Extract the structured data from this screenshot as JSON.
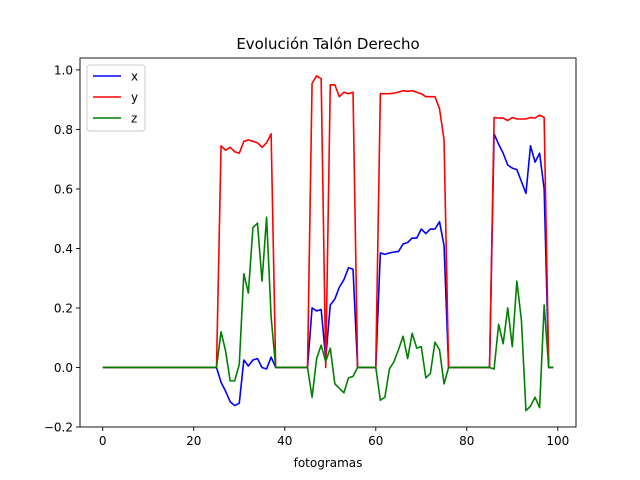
{
  "chart_data": {
    "type": "line",
    "title": "Evolución Talón Derecho",
    "xlabel": "fotogramas",
    "ylabel": "",
    "xlim": [
      -5,
      104
    ],
    "ylim": [
      -0.2,
      1.04
    ],
    "xticks": [
      0,
      20,
      40,
      60,
      80,
      100
    ],
    "yticks": [
      -0.2,
      0.0,
      0.2,
      0.4,
      0.6,
      0.8,
      1.0
    ],
    "xtick_labels": [
      "0",
      "20",
      "40",
      "60",
      "80",
      "100"
    ],
    "ytick_labels": [
      "−0.2",
      "0.0",
      "0.2",
      "0.4",
      "0.6",
      "0.8",
      "1.0"
    ],
    "grid": false,
    "legend_position": "upper-left",
    "series": [
      {
        "name": "x",
        "color": "#0000ff",
        "x": [
          0,
          25,
          26,
          27,
          28,
          29,
          30,
          31,
          32,
          33,
          34,
          35,
          36,
          37,
          38,
          45,
          46,
          47,
          48,
          49,
          50,
          51,
          52,
          53,
          54,
          55,
          56,
          60,
          61,
          62,
          63,
          64,
          65,
          66,
          67,
          68,
          69,
          70,
          71,
          72,
          73,
          74,
          75,
          76,
          85,
          86,
          87,
          88,
          89,
          90,
          91,
          92,
          93,
          94,
          95,
          96,
          97,
          98,
          99
        ],
        "y": [
          0,
          0,
          -0.05,
          -0.08,
          -0.115,
          -0.128,
          -0.12,
          0.025,
          0.005,
          0.025,
          0.03,
          0.0,
          -0.005,
          0.035,
          0.0,
          0.0,
          0.2,
          0.19,
          0.195,
          0.03,
          0.21,
          0.23,
          0.27,
          0.295,
          0.335,
          0.33,
          0.0,
          0.0,
          0.385,
          0.38,
          0.385,
          0.388,
          0.39,
          0.415,
          0.42,
          0.435,
          0.435,
          0.465,
          0.45,
          0.465,
          0.465,
          0.49,
          0.41,
          0.0,
          0.0,
          0.785,
          0.75,
          0.72,
          0.68,
          0.67,
          0.665,
          0.625,
          0.585,
          0.745,
          0.69,
          0.72,
          0.6,
          0.0,
          0.0
        ]
      },
      {
        "name": "y",
        "color": "#ff0000",
        "x": [
          0,
          25,
          26,
          27,
          28,
          29,
          30,
          31,
          32,
          33,
          34,
          35,
          36,
          37,
          38,
          45,
          46,
          47,
          48,
          49,
          50,
          51,
          52,
          53,
          54,
          55,
          56,
          60,
          61,
          62,
          63,
          64,
          65,
          66,
          67,
          68,
          69,
          70,
          71,
          72,
          73,
          74,
          75,
          76,
          85,
          86,
          87,
          88,
          89,
          90,
          91,
          92,
          93,
          94,
          95,
          96,
          97,
          98,
          99
        ],
        "y": [
          0,
          0,
          0.745,
          0.73,
          0.74,
          0.725,
          0.72,
          0.76,
          0.765,
          0.76,
          0.755,
          0.74,
          0.755,
          0.785,
          0.0,
          0.0,
          0.955,
          0.98,
          0.97,
          0.0,
          0.95,
          0.95,
          0.91,
          0.925,
          0.92,
          0.925,
          0.0,
          0.0,
          0.92,
          0.92,
          0.92,
          0.922,
          0.925,
          0.93,
          0.928,
          0.93,
          0.925,
          0.92,
          0.91,
          0.91,
          0.91,
          0.87,
          0.765,
          0.0,
          0.0,
          0.84,
          0.838,
          0.838,
          0.83,
          0.84,
          0.835,
          0.835,
          0.835,
          0.84,
          0.838,
          0.848,
          0.84,
          0.0,
          0.0
        ]
      },
      {
        "name": "z",
        "color": "#008000",
        "x": [
          0,
          25,
          26,
          27,
          28,
          29,
          30,
          31,
          32,
          33,
          34,
          35,
          36,
          37,
          38,
          45,
          46,
          47,
          48,
          49,
          50,
          51,
          52,
          53,
          54,
          55,
          56,
          60,
          61,
          62,
          63,
          64,
          65,
          66,
          67,
          68,
          69,
          70,
          71,
          72,
          73,
          74,
          75,
          76,
          85,
          86,
          87,
          88,
          89,
          90,
          91,
          92,
          93,
          94,
          95,
          96,
          97,
          98,
          99
        ],
        "y": [
          0,
          0,
          0.12,
          0.055,
          -0.045,
          -0.045,
          0.01,
          0.315,
          0.25,
          0.47,
          0.485,
          0.29,
          0.505,
          0.17,
          0.0,
          0.0,
          -0.1,
          0.03,
          0.075,
          0.02,
          0.065,
          -0.055,
          -0.07,
          -0.085,
          -0.035,
          -0.03,
          0.0,
          0.0,
          -0.11,
          -0.1,
          -0.005,
          0.02,
          0.06,
          0.105,
          0.03,
          0.115,
          0.065,
          0.07,
          -0.035,
          -0.02,
          0.085,
          0.06,
          -0.055,
          0.0,
          0.0,
          -0.005,
          0.145,
          0.08,
          0.2,
          0.07,
          0.29,
          0.16,
          -0.145,
          -0.13,
          -0.1,
          -0.135,
          0.21,
          0.0,
          0.0
        ]
      }
    ]
  }
}
